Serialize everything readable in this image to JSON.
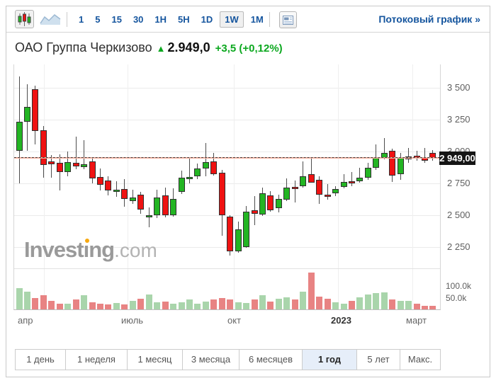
{
  "toolbar": {
    "chart_type": {
      "candlestick_selected": true,
      "candlestick_icon": "candlestick-icon",
      "line_icon": "line-chart-icon"
    },
    "timeframes": [
      "1",
      "5",
      "15",
      "30",
      "1H",
      "5H",
      "1D",
      "1W",
      "1M"
    ],
    "selected_timeframe": "1W",
    "news_icon": "news-panel-icon",
    "streaming_link": "Потоковый график »"
  },
  "header": {
    "title": "ОАО Группа Черкизово",
    "arrow": "▲",
    "price": "2.949,0",
    "change": "+3,5",
    "change_pct": "(+0,12%)"
  },
  "watermark": {
    "part1": "Invest",
    "dotless_i": "ı",
    "part2": "ng",
    "suffix": ".com"
  },
  "chart_data": {
    "type": "candlestick",
    "subchart": "volume-bar",
    "period": "weekly, 1 year (апр 2022 – март 2023)",
    "y_axis": {
      "ticks": [
        "3 500",
        "3 250",
        "3 000",
        "2 750",
        "2 500",
        "2 250"
      ],
      "values": [
        3500,
        3250,
        3000,
        2750,
        2500,
        2250
      ],
      "ylim": [
        2150,
        3620
      ]
    },
    "x_axis": {
      "labels": [
        "апр",
        "июль",
        "окт",
        "2023",
        "март"
      ]
    },
    "volume_axis": {
      "ticks": [
        "100.0k",
        "50.0k"
      ],
      "values": [
        100,
        50
      ]
    },
    "current_price": {
      "label": "2 949,00",
      "value": 2949
    },
    "candles_ohlcv_k": [
      [
        3005,
        3590,
        2750,
        3235,
        76
      ],
      [
        3235,
        3530,
        3005,
        3350,
        62
      ],
      [
        3490,
        3515,
        3055,
        3160,
        35
      ],
      [
        3165,
        3200,
        2795,
        2895,
        47
      ],
      [
        2920,
        2970,
        2795,
        2900,
        24
      ],
      [
        2910,
        2980,
        2695,
        2840,
        12
      ],
      [
        2835,
        3000,
        2805,
        2915,
        12
      ],
      [
        2910,
        3115,
        2860,
        2880,
        29
      ],
      [
        2880,
        3090,
        2865,
        2900,
        47
      ],
      [
        2920,
        2950,
        2750,
        2785,
        18
      ],
      [
        2800,
        2865,
        2695,
        2740,
        12
      ],
      [
        2770,
        2805,
        2655,
        2695,
        8
      ],
      [
        2685,
        2765,
        2645,
        2700,
        15
      ],
      [
        2705,
        2785,
        2570,
        2630,
        8
      ],
      [
        2615,
        2700,
        2590,
        2640,
        24
      ],
      [
        2660,
        2685,
        2515,
        2545,
        32
      ],
      [
        2485,
        2560,
        2405,
        2500,
        50
      ],
      [
        2500,
        2700,
        2480,
        2640,
        18
      ],
      [
        2655,
        2715,
        2480,
        2500,
        21
      ],
      [
        2500,
        2710,
        2490,
        2630,
        12
      ],
      [
        2685,
        2850,
        2665,
        2795,
        18
      ],
      [
        2785,
        2950,
        2750,
        2800,
        29
      ],
      [
        2805,
        2905,
        2785,
        2865,
        12
      ],
      [
        2865,
        3065,
        2805,
        2915,
        21
      ],
      [
        2920,
        2990,
        2810,
        2820,
        29
      ],
      [
        2835,
        2855,
        2340,
        2500,
        35
      ],
      [
        2490,
        2500,
        2185,
        2215,
        29
      ],
      [
        2220,
        2450,
        2205,
        2390,
        18
      ],
      [
        2255,
        2575,
        2245,
        2530,
        15
      ],
      [
        2540,
        2650,
        2425,
        2510,
        29
      ],
      [
        2505,
        2715,
        2495,
        2670,
        47
      ],
      [
        2655,
        2690,
        2530,
        2540,
        21
      ],
      [
        2560,
        2660,
        2520,
        2630,
        32
      ],
      [
        2620,
        2790,
        2615,
        2715,
        38
      ],
      [
        2725,
        2770,
        2595,
        2710,
        29
      ],
      [
        2730,
        2920,
        2715,
        2805,
        62
      ],
      [
        2825,
        2950,
        2755,
        2760,
        140
      ],
      [
        2780,
        2805,
        2590,
        2665,
        41
      ],
      [
        2660,
        2745,
        2620,
        2650,
        32
      ],
      [
        2670,
        2730,
        2655,
        2705,
        18
      ],
      [
        2720,
        2825,
        2715,
        2760,
        12
      ],
      [
        2765,
        2840,
        2730,
        2750,
        24
      ],
      [
        2770,
        2875,
        2760,
        2795,
        38
      ],
      [
        2790,
        2910,
        2775,
        2870,
        50
      ],
      [
        2870,
        3055,
        2855,
        2955,
        56
      ],
      [
        2950,
        3105,
        2940,
        2990,
        59
      ],
      [
        3005,
        3025,
        2765,
        2810,
        29
      ],
      [
        2820,
        2990,
        2780,
        2950,
        24
      ],
      [
        2940,
        3030,
        2915,
        2960,
        24
      ],
      [
        2965,
        3005,
        2925,
        2945,
        12
      ],
      [
        2950,
        3030,
        2915,
        2930,
        4
      ],
      [
        2990,
        3010,
        2925,
        2949,
        2
      ]
    ],
    "colors": {
      "up": "#23b523",
      "down": "#ef1212",
      "vol_up": "#a9d5ab",
      "vol_down": "#e88383",
      "price_line": "#f6b09e",
      "tag_bg": "#151515",
      "accent_blue": "#15559e",
      "accent_green": "#0ca81f"
    }
  },
  "range_buttons": [
    "1 день",
    "1 неделя",
    "1 месяц",
    "3 месяца",
    "6 месяцев",
    "1 год",
    "5 лет",
    "Макс."
  ],
  "selected_range": "1 год"
}
